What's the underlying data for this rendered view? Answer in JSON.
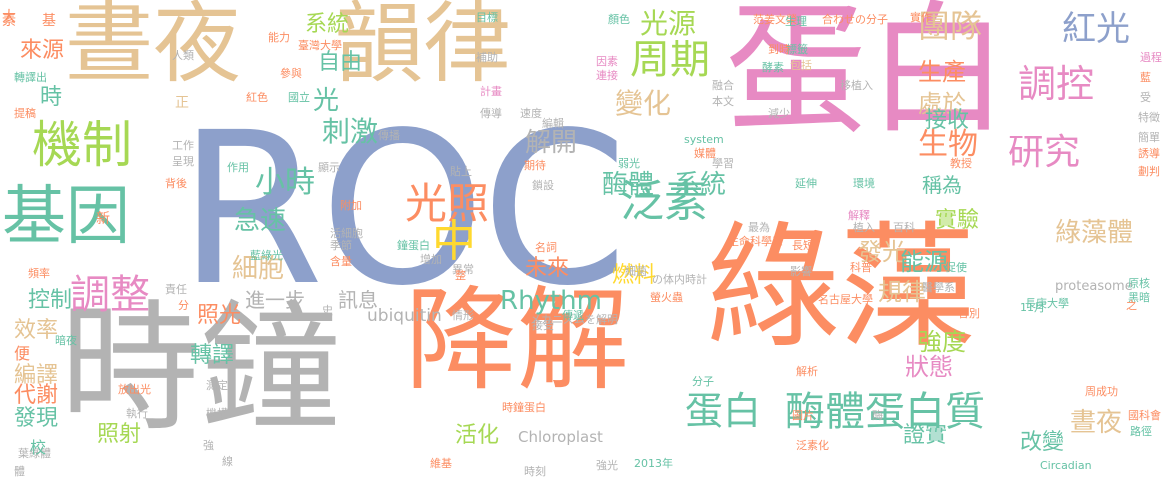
{
  "palette": {
    "gray": "#b3b3b3",
    "blue": "#8da0cb",
    "orange": "#fc8d62",
    "pink": "#e78ac3",
    "tan": "#e5c494",
    "green": "#a6d854",
    "teal": "#66c2a5",
    "yellow": "#ffd92f"
  },
  "words": [
    {
      "text": "ROC",
      "color": "blue"
    },
    {
      "text": "綠藻",
      "color": "orange"
    },
    {
      "text": "時鐘",
      "color": "gray"
    },
    {
      "text": "降解",
      "color": "orange"
    },
    {
      "text": "蛋白",
      "color": "pink"
    },
    {
      "text": "晝夜",
      "color": "tan"
    },
    {
      "text": "韻律",
      "color": "tan"
    },
    {
      "text": "基因",
      "color": "teal"
    },
    {
      "text": "機制",
      "color": "green"
    },
    {
      "text": "酶體蛋白質",
      "color": "teal"
    },
    {
      "text": "蛋白",
      "color": "teal"
    },
    {
      "text": "周期",
      "color": "green"
    },
    {
      "text": "泛素",
      "color": "teal"
    },
    {
      "text": "調控",
      "color": "pink"
    },
    {
      "text": "研究",
      "color": "pink"
    },
    {
      "text": "變化",
      "color": "tan"
    },
    {
      "text": "紅光",
      "color": "blue"
    },
    {
      "text": "團隊",
      "color": "tan"
    },
    {
      "text": "光源",
      "color": "green"
    },
    {
      "text": "光照",
      "color": "orange"
    },
    {
      "text": "中",
      "color": "yellow"
    },
    {
      "text": "調整",
      "color": "pink"
    },
    {
      "text": "刺激",
      "color": "teal"
    },
    {
      "text": "酶體",
      "color": "teal"
    },
    {
      "text": "系統",
      "color": "teal"
    },
    {
      "text": "生物",
      "color": "orange"
    },
    {
      "text": "小時",
      "color": "teal"
    },
    {
      "text": "急速",
      "color": "teal"
    },
    {
      "text": "細胞",
      "color": "tan"
    },
    {
      "text": "解開",
      "color": "gray"
    },
    {
      "text": "光",
      "color": "teal"
    },
    {
      "text": "Rhythm",
      "color": "teal"
    },
    {
      "text": "綠藻體",
      "color": "tan"
    },
    {
      "text": "晝夜",
      "color": "tan"
    },
    {
      "text": "生產",
      "color": "orange"
    },
    {
      "text": "處於",
      "color": "tan"
    },
    {
      "text": "發光",
      "color": "tan"
    },
    {
      "text": "實驗",
      "color": "green"
    },
    {
      "text": "能源",
      "color": "teal"
    },
    {
      "text": "規律",
      "color": "tan"
    },
    {
      "text": "強度",
      "color": "green"
    },
    {
      "text": "狀態",
      "color": "pink"
    },
    {
      "text": "接收",
      "color": "teal"
    },
    {
      "text": "稱為",
      "color": "teal"
    },
    {
      "text": "改變",
      "color": "teal"
    },
    {
      "text": "燃料",
      "color": "yellow"
    },
    {
      "text": "未來",
      "color": "orange"
    },
    {
      "text": "活化",
      "color": "green"
    },
    {
      "text": "證實",
      "color": "teal"
    },
    {
      "text": "照射",
      "color": "green"
    },
    {
      "text": "照光",
      "color": "orange"
    },
    {
      "text": "轉譯",
      "color": "teal"
    },
    {
      "text": "發現",
      "color": "teal"
    },
    {
      "text": "代謝",
      "color": "orange"
    },
    {
      "text": "編譯",
      "color": "tan"
    },
    {
      "text": "效率",
      "color": "tan"
    },
    {
      "text": "控制",
      "color": "teal"
    },
    {
      "text": "來源",
      "color": "orange"
    },
    {
      "text": "進一步",
      "color": "gray"
    },
    {
      "text": "訊息",
      "color": "gray"
    },
    {
      "text": "自由",
      "color": "teal"
    },
    {
      "text": "系統",
      "color": "green"
    },
    {
      "text": "時",
      "color": "teal"
    },
    {
      "text": "ubiquitin",
      "color": "gray"
    },
    {
      "text": "Chloroplast",
      "color": "gray"
    },
    {
      "text": "proteasome",
      "color": "gray"
    },
    {
      "text": "Circadian",
      "color": "teal"
    },
    {
      "text": "メカニズムを解明",
      "color": "gray"
    },
    {
      "text": "の体内時計",
      "color": "gray"
    },
    {
      "text": "長庚大學",
      "color": "teal"
    },
    {
      "text": "名古屋大學",
      "color": "orange"
    },
    {
      "text": "生命科學系",
      "color": "orange"
    },
    {
      "text": "臺灣大學",
      "color": "orange"
    },
    {
      "text": "合わせの分子",
      "color": "orange"
    },
    {
      "text": "范姜文榮",
      "color": "orange"
    },
    {
      "text": "2013年",
      "color": "teal"
    },
    {
      "text": "11月",
      "color": "teal"
    },
    {
      "text": "system",
      "color": "teal"
    },
    {
      "text": "螢火蟲",
      "color": "orange"
    },
    {
      "text": "藍綠光",
      "color": "teal"
    },
    {
      "text": "活細胞",
      "color": "gray"
    },
    {
      "text": "時鐘蛋白",
      "color": "orange"
    },
    {
      "text": "葉綠體",
      "color": "gray"
    },
    {
      "text": "醫學系",
      "color": "gray"
    },
    {
      "text": "國科會",
      "color": "orange"
    },
    {
      "text": "周成功",
      "color": "orange"
    },
    {
      "text": "放出光",
      "color": "orange"
    },
    {
      "text": "大",
      "color": "orange"
    },
    {
      "text": "素",
      "color": "orange"
    },
    {
      "text": "基",
      "color": "orange"
    },
    {
      "text": "正",
      "color": "tan"
    },
    {
      "text": "校",
      "color": "teal"
    },
    {
      "text": "便",
      "color": "orange"
    },
    {
      "text": "新",
      "color": "orange"
    },
    {
      "text": "體",
      "color": "gray"
    },
    {
      "text": "人類",
      "color": "gray"
    },
    {
      "text": "能力",
      "color": "orange"
    },
    {
      "text": "參與",
      "color": "orange"
    },
    {
      "text": "目標",
      "color": "teal"
    },
    {
      "text": "顏色",
      "color": "teal"
    },
    {
      "text": "實作",
      "color": "orange"
    },
    {
      "text": "生理",
      "color": "teal"
    },
    {
      "text": "補助",
      "color": "gray"
    },
    {
      "text": "因素",
      "color": "pink"
    },
    {
      "text": "連接",
      "color": "pink"
    },
    {
      "text": "計畫",
      "color": "pink"
    },
    {
      "text": "傳導",
      "color": "gray"
    },
    {
      "text": "速度",
      "color": "gray"
    },
    {
      "text": "編輯",
      "color": "gray"
    },
    {
      "text": "標籤",
      "color": "teal"
    },
    {
      "text": "包括",
      "color": "tan"
    },
    {
      "text": "移植入",
      "color": "gray"
    },
    {
      "text": "過程",
      "color": "pink"
    },
    {
      "text": "受",
      "color": "gray"
    },
    {
      "text": "特徵",
      "color": "gray"
    },
    {
      "text": "簡單",
      "color": "gray"
    },
    {
      "text": "誘導",
      "color": "orange"
    },
    {
      "text": "劃判",
      "color": "orange"
    },
    {
      "text": "融合",
      "color": "gray"
    },
    {
      "text": "本文",
      "color": "gray"
    },
    {
      "text": "減少",
      "color": "gray"
    },
    {
      "text": "紅色",
      "color": "orange"
    },
    {
      "text": "國立",
      "color": "teal"
    },
    {
      "text": "轉譯出",
      "color": "teal"
    },
    {
      "text": "提稿",
      "color": "orange"
    },
    {
      "text": "工作",
      "color": "gray"
    },
    {
      "text": "呈現",
      "color": "gray"
    },
    {
      "text": "背後",
      "color": "orange"
    },
    {
      "text": "作用",
      "color": "teal"
    },
    {
      "text": "顯示",
      "color": "gray"
    },
    {
      "text": "傳播",
      "color": "gray"
    },
    {
      "text": "附加",
      "color": "orange"
    },
    {
      "text": "期待",
      "color": "orange"
    },
    {
      "text": "貼上",
      "color": "gray"
    },
    {
      "text": "弱光",
      "color": "teal"
    },
    {
      "text": "媒體",
      "color": "orange"
    },
    {
      "text": "學習",
      "color": "gray"
    },
    {
      "text": "延伸",
      "color": "teal"
    },
    {
      "text": "環境",
      "color": "teal"
    },
    {
      "text": "教授",
      "color": "orange"
    },
    {
      "text": "解釋",
      "color": "pink"
    },
    {
      "text": "鎖設",
      "color": "gray"
    },
    {
      "text": "細菌",
      "color": "gray"
    },
    {
      "text": "最為",
      "color": "gray"
    },
    {
      "text": "長短",
      "color": "orange"
    },
    {
      "text": "植入",
      "color": "gray"
    },
    {
      "text": "百科",
      "color": "gray"
    },
    {
      "text": "促使",
      "color": "teal"
    },
    {
      "text": "影響",
      "color": "gray"
    },
    {
      "text": "科普",
      "color": "orange"
    },
    {
      "text": "季節",
      "color": "gray"
    },
    {
      "text": "含量",
      "color": "orange"
    },
    {
      "text": "增加",
      "color": "gray"
    },
    {
      "text": "鐘蛋白",
      "color": "teal"
    },
    {
      "text": "異常",
      "color": "gray"
    },
    {
      "text": "名詞",
      "color": "orange"
    },
    {
      "text": "整",
      "color": "orange"
    },
    {
      "text": "頻率",
      "color": "orange"
    },
    {
      "text": "責任",
      "color": "gray"
    },
    {
      "text": "分",
      "color": "orange"
    },
    {
      "text": "史",
      "color": "gray"
    },
    {
      "text": "情形",
      "color": "gray"
    },
    {
      "text": "接受",
      "color": "gray"
    },
    {
      "text": "傳遞",
      "color": "teal"
    },
    {
      "text": "暗夜",
      "color": "teal"
    },
    {
      "text": "分子",
      "color": "teal"
    },
    {
      "text": "解析",
      "color": "orange"
    },
    {
      "text": "測定",
      "color": "gray"
    },
    {
      "text": "執行",
      "color": "gray"
    },
    {
      "text": "機構",
      "color": "gray"
    },
    {
      "text": "圖片",
      "color": "orange"
    },
    {
      "text": "泛素化",
      "color": "orange"
    },
    {
      "text": "酶",
      "color": "gray"
    },
    {
      "text": "強",
      "color": "gray"
    },
    {
      "text": "線",
      "color": "gray"
    },
    {
      "text": "維基",
      "color": "orange"
    },
    {
      "text": "時刻",
      "color": "gray"
    },
    {
      "text": "強光",
      "color": "gray"
    },
    {
      "text": "路徑",
      "color": "teal"
    },
    {
      "text": "原核",
      "color": "teal"
    },
    {
      "text": "黑暗",
      "color": "teal"
    },
    {
      "text": "各別",
      "color": "orange"
    },
    {
      "text": "之",
      "color": "orange"
    },
    {
      "text": "到時",
      "color": "orange"
    },
    {
      "text": "酵素",
      "color": "teal"
    },
    {
      "text": "藍",
      "color": "orange"
    }
  ]
}
